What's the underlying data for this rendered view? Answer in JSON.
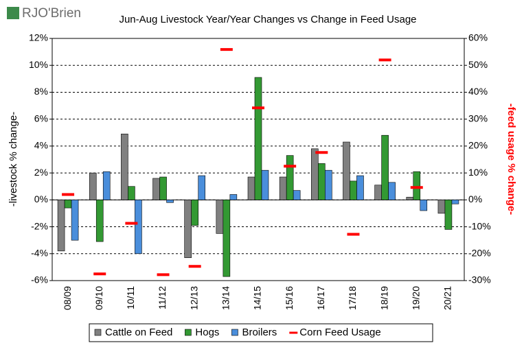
{
  "logo": "RJO'Brien",
  "chart_data": {
    "type": "bar_line",
    "title": "Jun-Aug Livestock Year/Year Changes vs Change in Feed Usage",
    "ylabel": "-livestock % change-",
    "y2label": "-feed usage % change-",
    "categories": [
      "08/09",
      "09/10",
      "10/11",
      "11/12",
      "12/13",
      "13/14",
      "14/15",
      "15/16",
      "16/17",
      "17/18",
      "18/19",
      "19/20",
      "20/21"
    ],
    "series": [
      {
        "name": "Cattle on Feed",
        "color": "#808080",
        "values": [
          -3.8,
          2.0,
          4.9,
          1.6,
          -4.3,
          -2.5,
          1.7,
          1.7,
          3.8,
          4.3,
          1.1,
          0.2,
          -1.0
        ]
      },
      {
        "name": "Hogs",
        "color": "#339933",
        "values": [
          -0.6,
          -3.1,
          1.0,
          1.7,
          -1.9,
          -5.7,
          9.1,
          3.3,
          2.7,
          1.4,
          4.8,
          2.1,
          -2.2
        ]
      },
      {
        "name": "Broilers",
        "color": "#4a8edb",
        "values": [
          -3.0,
          2.1,
          -4.0,
          -0.2,
          1.8,
          0.4,
          2.2,
          0.7,
          2.2,
          1.8,
          1.3,
          -0.8,
          -0.3
        ]
      },
      {
        "name": "Corn Feed Usage",
        "color": "#ff0000",
        "axis": "y2",
        "values": [
          2,
          -27.5,
          -8.7,
          -27.8,
          -24.7,
          55.9,
          34.2,
          12.5,
          17.6,
          -12.8,
          52,
          4.6,
          null
        ]
      }
    ],
    "ylim": [
      -6,
      12
    ],
    "yticks": [
      {
        "value": -6,
        "label": "-6%"
      },
      {
        "value": -4,
        "label": "-4%"
      },
      {
        "value": -2,
        "label": "-2%"
      },
      {
        "value": 0,
        "label": "0%"
      },
      {
        "value": 2,
        "label": "2%"
      },
      {
        "value": 4,
        "label": "4%"
      },
      {
        "value": 6,
        "label": "6%"
      },
      {
        "value": 8,
        "label": "8%"
      },
      {
        "value": 10,
        "label": "10%"
      },
      {
        "value": 12,
        "label": "12%"
      }
    ],
    "y2lim": [
      -30,
      60
    ],
    "y2ticks": [
      {
        "value": -30,
        "label": "-30%"
      },
      {
        "value": -20,
        "label": "-20%"
      },
      {
        "value": -10,
        "label": "-10%"
      },
      {
        "value": 0,
        "label": "0%"
      },
      {
        "value": 10,
        "label": "10%"
      },
      {
        "value": 20,
        "label": "20%"
      },
      {
        "value": 30,
        "label": "30%"
      },
      {
        "value": 40,
        "label": "40%"
      },
      {
        "value": 50,
        "label": "50%"
      },
      {
        "value": 60,
        "label": "60%"
      }
    ],
    "grid": true
  }
}
